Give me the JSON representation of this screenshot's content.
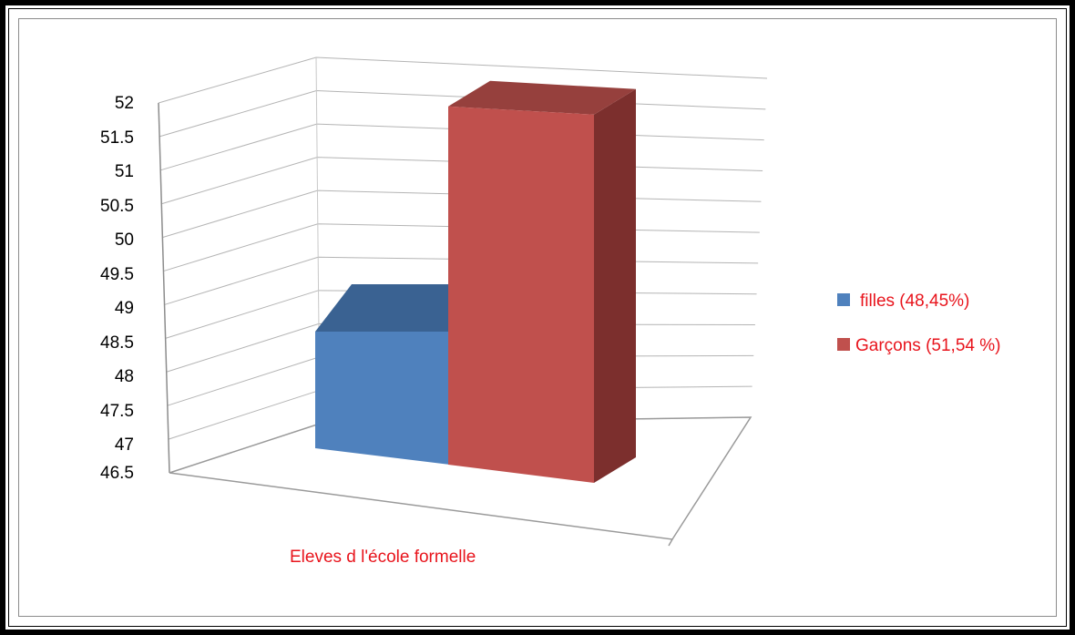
{
  "chart_data": {
    "type": "bar",
    "style": "3d-column",
    "categories": [
      "Eleves d l'école formelle"
    ],
    "series": [
      {
        "name": "filles (48,45%)",
        "values": [
          48.45
        ],
        "color": "#4f81bd"
      },
      {
        "name": "Garçons (51,54 %)",
        "values": [
          51.54
        ],
        "color": "#c0504d"
      }
    ],
    "xlabel": "Eleves d l'école formelle",
    "ylabel": "",
    "ylim": [
      46.5,
      52
    ],
    "yticks": [
      "52",
      "51.5",
      "51",
      "50.5",
      "50",
      "49.5",
      "49",
      "48.5",
      "48",
      "47.5",
      "47",
      "46.5"
    ],
    "grid": true,
    "legend_position": "right"
  }
}
